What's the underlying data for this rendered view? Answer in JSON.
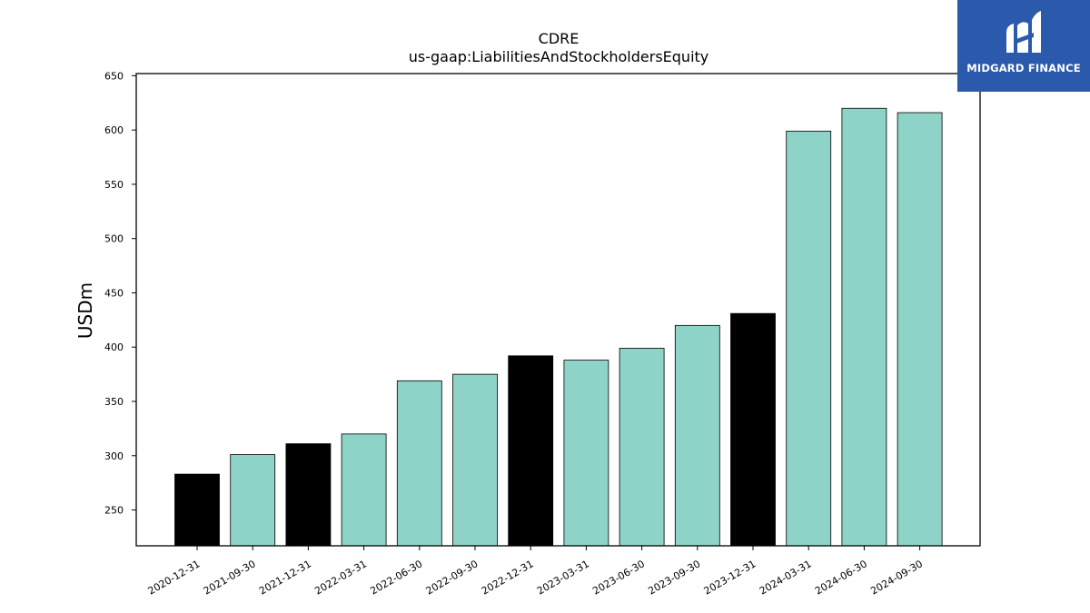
{
  "chart_data": {
    "type": "bar",
    "title": "CDRE",
    "subtitle": "us-gaap:LiabilitiesAndStockholdersEquity",
    "xlabel": "",
    "ylabel": "USDm",
    "ylim": [
      217,
      652
    ],
    "yticks": [
      250,
      300,
      350,
      400,
      450,
      500,
      550,
      600,
      650
    ],
    "categories": [
      "2020-12-31",
      "2021-09-30",
      "2021-12-31",
      "2022-03-31",
      "2022-06-30",
      "2022-09-30",
      "2022-12-31",
      "2023-03-31",
      "2023-06-30",
      "2023-09-30",
      "2023-12-31",
      "2024-03-31",
      "2024-06-30",
      "2024-09-30"
    ],
    "values": [
      283,
      301,
      311,
      320,
      369,
      375,
      392,
      388,
      399,
      420,
      431,
      599,
      620,
      616
    ],
    "bar_colors": [
      "#000000",
      "#8dd3c7",
      "#000000",
      "#8dd3c7",
      "#8dd3c7",
      "#8dd3c7",
      "#000000",
      "#8dd3c7",
      "#8dd3c7",
      "#8dd3c7",
      "#000000",
      "#8dd3c7",
      "#8dd3c7",
      "#8dd3c7"
    ],
    "grid": false
  },
  "logo": {
    "text": "MIDGARD FINANCE",
    "background": "#2b5aad"
  }
}
